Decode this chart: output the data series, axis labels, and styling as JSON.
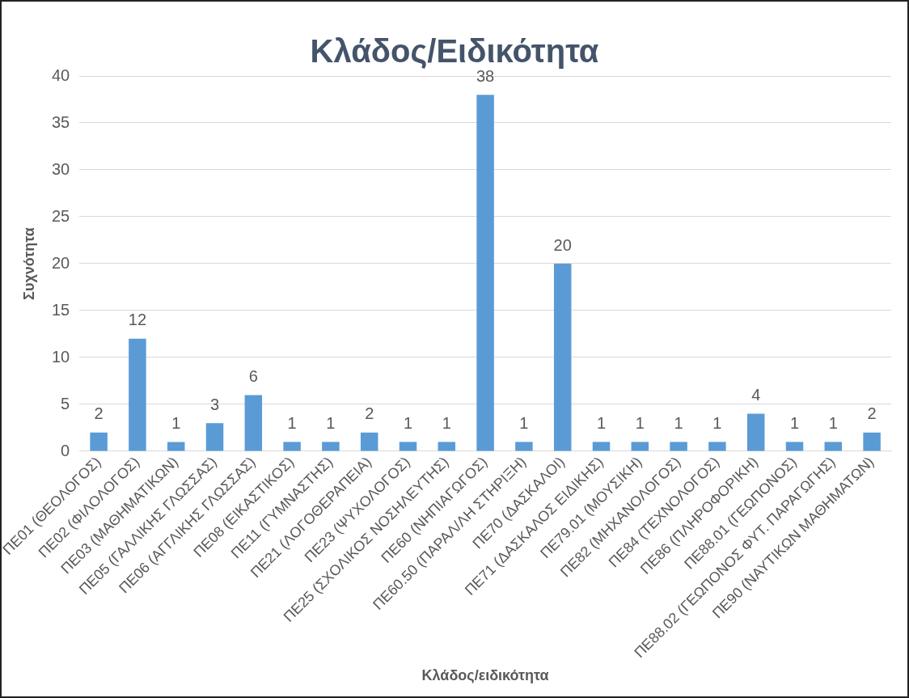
{
  "chart_data": {
    "type": "bar",
    "title": "Κλάδος/Ειδικότητα",
    "xlabel": "Κλάδος/ειδικότητα",
    "ylabel": "Συχνότητα",
    "categories": [
      "ΠΕ01 (ΘΕΟΛΟΓΟΣ)",
      "ΠΕ02 (ΦΙΛΟΛΟΓΟΣ)",
      "ΠΕ03 (ΜΑΘΗΜΑΤΙΚΩΝ)",
      "ΠΕ05 (ΓΑΛΛΙΚΗΣ ΓΛΩΣΣΑΣ)",
      "ΠΕ06 (ΑΓΓΛΙΚΗΣ ΓΛΩΣΣΑΣ)",
      "ΠΕ08 (ΕΙΚΑΣΤΙΚΟΣ)",
      "ΠΕ11 (ΓΥΜΝΑΣΤΗΣ)",
      "ΠΕ21 (ΛΟΓΟΘΕΡΑΠΕΙΑ)",
      "ΠΕ23 (ΨΥΧΟΛΟΓΟΣ)",
      "ΠΕ25 (ΣΧΟΛΙΚΟΣ ΝΟΣΗΛΕΥΤΗΣ)",
      "ΠΕ60 (ΝΗΠΙΑΓΩΓΟΣ)",
      "ΠΕ60.50 (ΠΑΡΑΛ/ΛΗ ΣΤΗΡΙΞΗ)",
      "ΠΕ70 (ΔΑΣΚΑΛΟΙ)",
      "ΠΕ71 (ΔΑΣΚΑΛΟΣ ΕΙΔΙΚΗΣ)",
      "ΠΕ79.01 (ΜΟΥΣΙΚΗ)",
      "ΠΕ82 (ΜΗΧΑΝΟΛΟΓΟΣ)",
      "ΠΕ84 (ΤΕΧΝΟΛΟΓΟΣ)",
      "ΠΕ86 (ΠΛΗΡΟΦΟΡΙΚΗ)",
      "ΠΕ88.01 (ΓΕΩΠΟΝΟΣ)",
      "ΠΕ88.02 (ΓΕΩΠΟΝΟΣ ΦΥΤ. ΠΑΡΑΓΩΓΗΣ)",
      "ΠΕ90 (ΝΑΥΤΙΚΩΝ ΜΑΘΗΜΑΤΩΝ)"
    ],
    "values": [
      2,
      12,
      1,
      3,
      6,
      1,
      1,
      2,
      1,
      1,
      38,
      1,
      20,
      1,
      1,
      1,
      1,
      4,
      1,
      1,
      2
    ],
    "color": "#5b9bd5",
    "ylim": [
      0,
      40
    ],
    "yticks": [
      0,
      5,
      10,
      15,
      20,
      25,
      30,
      35,
      40
    ],
    "grid": "y",
    "data_labels": true,
    "legend": false
  }
}
